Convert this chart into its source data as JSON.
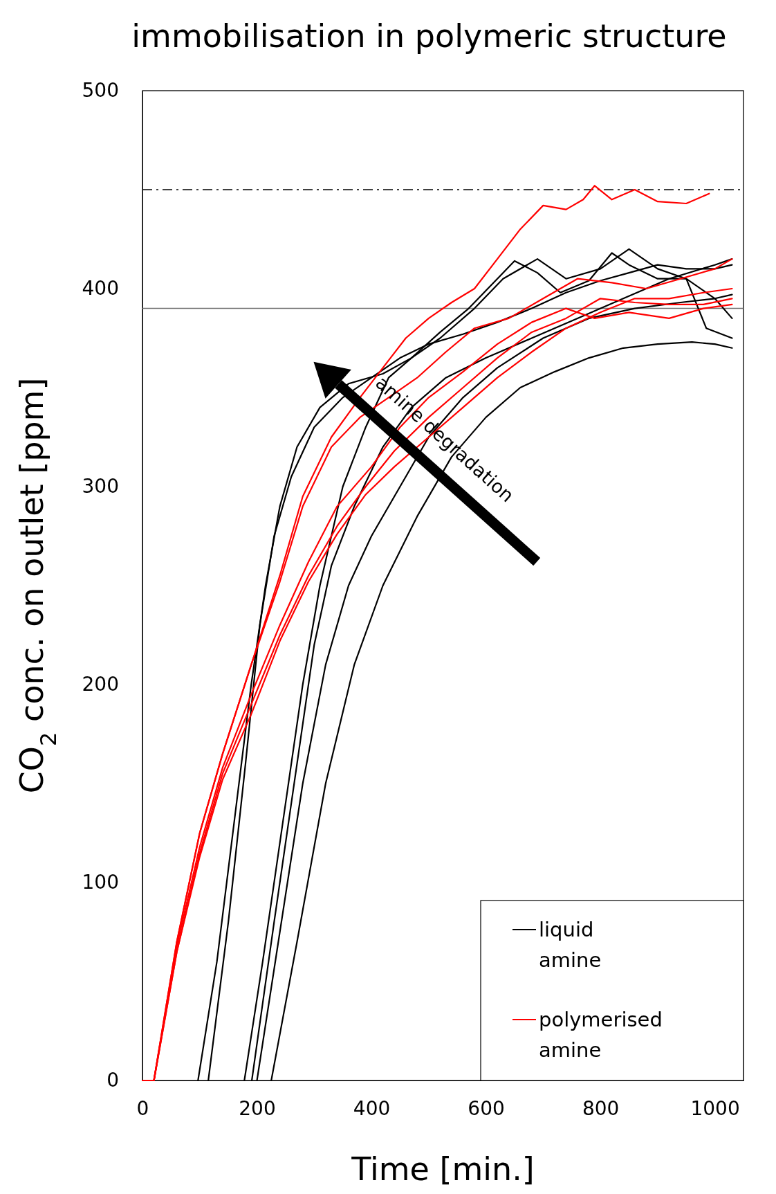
{
  "chart_data": {
    "type": "line",
    "title": "immobilisation in polymeric structure",
    "xlabel": "Time [min.]",
    "ylabel": "CO$_{2}$ conc. on outlet [ppm]",
    "xlim": [
      0,
      1050
    ],
    "xticks": [
      0,
      200,
      400,
      600,
      800,
      1000
    ],
    "ylim": [
      0,
      500
    ],
    "yticks": [
      0,
      100,
      200,
      300,
      400,
      500
    ],
    "grid": false,
    "legend": "bottom right",
    "line_style": "solid",
    "marker": "none",
    "annotations": [
      "amine degradation"
    ],
    "ref_lines": [
      {
        "axis": "y",
        "value": 450,
        "color": "#000000",
        "line_style": "dashed"
      },
      {
        "axis": "y",
        "value": 390,
        "color": "#707070",
        "line_style": "solid"
      }
    ],
    "series": [
      {
        "name": "liquid amine",
        "color": "#000000",
        "x": [
          97,
          130,
          160,
          190,
          215,
          240,
          270,
          310,
          360,
          420,
          470,
          520,
          570,
          620,
          650,
          690,
          730,
          780,
          820,
          850,
          900,
          950,
          1000,
          1030
        ],
        "values": [
          0,
          60,
          130,
          200,
          250,
          290,
          320,
          340,
          352,
          357,
          365,
          378,
          390,
          405,
          414,
          408,
          398,
          404,
          418,
          412,
          405,
          405,
          395,
          385
        ]
      },
      {
        "color": "#000000",
        "x": [
          115,
          150,
          180,
          205,
          230,
          260,
          300,
          350,
          400,
          450,
          500,
          560,
          620,
          680,
          740,
          800,
          850,
          900,
          950,
          1000,
          1030
        ],
        "values": [
          0,
          80,
          160,
          230,
          275,
          305,
          330,
          345,
          355,
          365,
          372,
          377,
          383,
          390,
          398,
          404,
          408,
          412,
          410,
          410,
          412
        ]
      },
      {
        "color": "#000000",
        "x": [
          178,
          210,
          250,
          280,
          310,
          350,
          390,
          430,
          470,
          520,
          580,
          630,
          690,
          740,
          800,
          850,
          900,
          950,
          985,
          1030
        ],
        "values": [
          0,
          60,
          140,
          200,
          250,
          300,
          330,
          355,
          365,
          375,
          390,
          405,
          415,
          405,
          410,
          420,
          410,
          405,
          380,
          375
        ]
      },
      {
        "color": "#000000",
        "x": [
          191,
          230,
          270,
          300,
          330,
          370,
          420,
          470,
          530,
          600,
          680,
          760,
          840,
          920,
          1000,
          1030
        ],
        "values": [
          0,
          80,
          160,
          220,
          260,
          290,
          320,
          340,
          355,
          365,
          375,
          385,
          395,
          405,
          412,
          415
        ]
      },
      {
        "color": "#000000",
        "x": [
          200,
          240,
          280,
          320,
          360,
          400,
          450,
          500,
          560,
          620,
          700,
          780,
          860,
          940,
          1000,
          1030
        ],
        "values": [
          0,
          75,
          150,
          210,
          250,
          275,
          300,
          325,
          345,
          360,
          375,
          385,
          390,
          393,
          395,
          397
        ]
      },
      {
        "color": "#000000",
        "x": [
          225,
          270,
          320,
          370,
          420,
          480,
          540,
          600,
          660,
          720,
          780,
          840,
          900,
          960,
          1000,
          1030
        ],
        "values": [
          0,
          70,
          150,
          210,
          250,
          285,
          315,
          335,
          350,
          358,
          365,
          370,
          372,
          373,
          372,
          370
        ]
      },
      {
        "name": "polymerised amine",
        "color": "#ff0000",
        "x": [
          0,
          20,
          60,
          100,
          140,
          190,
          240,
          280,
          330,
          380,
          420,
          460,
          500,
          540,
          580,
          620,
          660,
          700,
          740,
          770,
          790,
          820,
          860,
          900,
          950,
          990
        ],
        "values": [
          0,
          0,
          70,
          125,
          165,
          210,
          255,
          295,
          325,
          345,
          360,
          375,
          385,
          393,
          400,
          415,
          430,
          442,
          440,
          445,
          452,
          445,
          450,
          444,
          443,
          448
        ]
      },
      {
        "color": "#ff0000",
        "x": [
          0,
          20,
          60,
          100,
          140,
          190,
          240,
          280,
          330,
          380,
          430,
          480,
          530,
          580,
          640,
          700,
          760,
          820,
          880,
          940,
          1000,
          1030
        ],
        "values": [
          0,
          0,
          70,
          125,
          165,
          210,
          252,
          290,
          320,
          335,
          345,
          355,
          368,
          380,
          385,
          395,
          405,
          403,
          400,
          405,
          410,
          415
        ]
      },
      {
        "color": "#ff0000",
        "x": [
          0,
          20,
          60,
          100,
          140,
          190,
          240,
          290,
          340,
          390,
          440,
          500,
          560,
          620,
          680,
          740,
          800,
          860,
          920,
          980,
          1030
        ],
        "values": [
          0,
          0,
          65,
          115,
          155,
          190,
          225,
          255,
          280,
          300,
          318,
          335,
          350,
          365,
          378,
          385,
          395,
          393,
          392,
          392,
          395
        ]
      },
      {
        "color": "#ff0000",
        "x": [
          0,
          20,
          60,
          100,
          140,
          190,
          240,
          290,
          340,
          390,
          440,
          500,
          560,
          620,
          680,
          740,
          800,
          860,
          920,
          980,
          1030
        ],
        "values": [
          0,
          0,
          65,
          113,
          152,
          185,
          222,
          252,
          276,
          296,
          310,
          325,
          340,
          355,
          368,
          380,
          388,
          395,
          395,
          398,
          400
        ]
      },
      {
        "color": "#ff0000",
        "x": [
          0,
          20,
          60,
          100,
          140,
          190,
          240,
          290,
          340,
          400,
          450,
          500,
          560,
          620,
          680,
          740,
          790,
          850,
          920,
          980,
          1030
        ],
        "values": [
          0,
          0,
          68,
          118,
          158,
          195,
          230,
          262,
          290,
          310,
          330,
          345,
          358,
          372,
          383,
          390,
          385,
          388,
          385,
          390,
          392
        ]
      }
    ]
  }
}
